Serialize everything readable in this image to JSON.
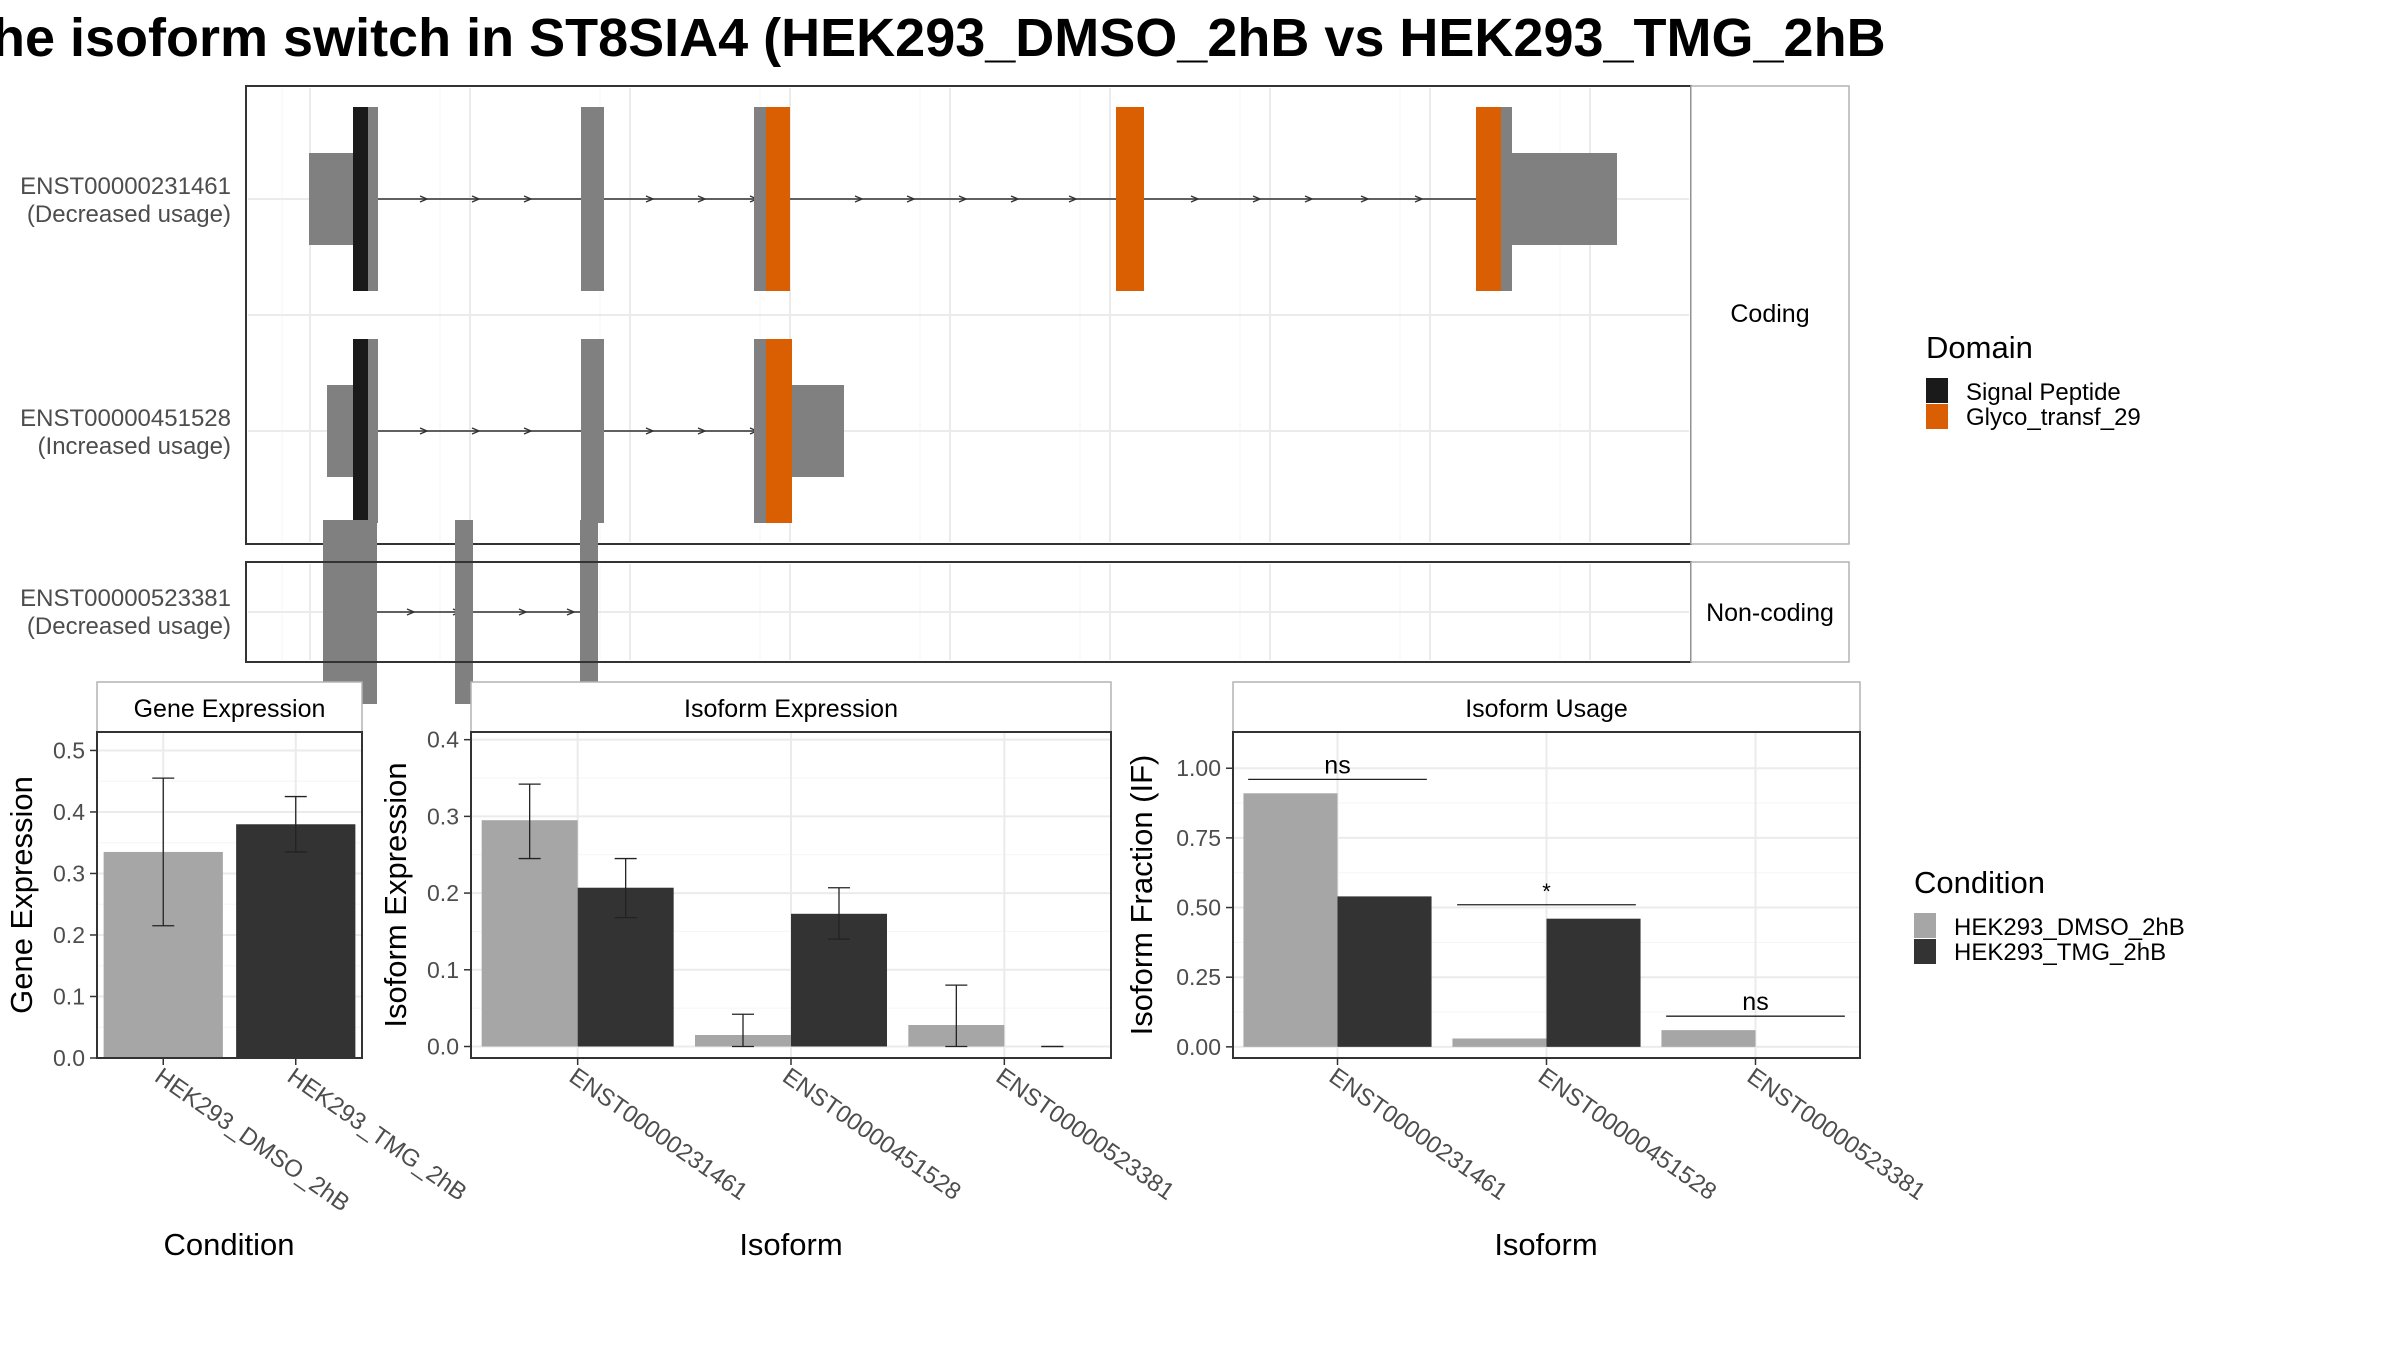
{
  "title": "he isoform switch in ST8SIA4 (HEK293_DMSO_2hB vs HEK293_TMG_2hB",
  "colors": {
    "exon": "#808080",
    "signal_peptide": "#1a1a1a",
    "glyco": "#d95f02",
    "dmso": "#a6a6a6",
    "tmg": "#333333",
    "panel_border": "#4d4d4d",
    "strip_fill": "#ffffff",
    "grid": "#ebebeb"
  },
  "structure": {
    "facet_labels": [
      "Coding",
      "Non-coding"
    ],
    "transcripts": [
      {
        "id": "ENST00000231461",
        "usage": "(Decreased usage)",
        "group": "Coding"
      },
      {
        "id": "ENST00000451528",
        "usage": "(Increased usage)",
        "group": "Coding"
      },
      {
        "id": "ENST00000523381",
        "usage": "(Decreased usage)",
        "group": "Non-coding"
      }
    ],
    "legend": {
      "title": "Domain",
      "items": [
        {
          "label": "Signal Peptide",
          "color": "#1a1a1a"
        },
        {
          "label": "Glyco_transf_29",
          "color": "#d95f02"
        }
      ]
    }
  },
  "chart_data": [
    {
      "type": "bar",
      "panel": "Gene Expression",
      "xlabel": "Condition",
      "ylabel": "Gene Expression",
      "categories": [
        "HEK293_DMSO_2hB",
        "HEK293_TMG_2hB"
      ],
      "values": [
        0.335,
        0.38
      ],
      "error_low": [
        0.215,
        0.335
      ],
      "error_high": [
        0.455,
        0.425
      ],
      "ylim": [
        0,
        0.53
      ],
      "yticks": [
        "0.0",
        "0.1",
        "0.2",
        "0.3",
        "0.4",
        "0.5"
      ],
      "grid": true
    },
    {
      "type": "bar",
      "panel": "Isoform Expression",
      "xlabel": "Isoform",
      "ylabel": "Isoform Expression",
      "categories": [
        "ENST00000231461",
        "ENST00000451528",
        "ENST00000523381"
      ],
      "series": [
        {
          "name": "HEK293_DMSO_2hB",
          "values": [
            0.295,
            0.015,
            0.028
          ],
          "error_low": [
            0.245,
            0.0,
            0.0
          ],
          "error_high": [
            0.342,
            0.042,
            0.08
          ]
        },
        {
          "name": "HEK293_TMG_2hB",
          "values": [
            0.207,
            0.173,
            0.0
          ],
          "error_low": [
            0.168,
            0.14,
            0.0
          ],
          "error_high": [
            0.245,
            0.207,
            0.0
          ]
        }
      ],
      "ylim": [
        -0.015,
        0.41
      ],
      "yticks": [
        "0.0",
        "0.1",
        "0.2",
        "0.3",
        "0.4"
      ],
      "grid": true
    },
    {
      "type": "bar",
      "panel": "Isoform Usage",
      "xlabel": "Isoform",
      "ylabel": "Isoform Fraction (IF)",
      "categories": [
        "ENST00000231461",
        "ENST00000451528",
        "ENST00000523381"
      ],
      "series": [
        {
          "name": "HEK293_DMSO_2hB",
          "values": [
            0.91,
            0.03,
            0.06
          ]
        },
        {
          "name": "HEK293_TMG_2hB",
          "values": [
            0.54,
            0.46,
            0.0
          ]
        }
      ],
      "significance": [
        "ns",
        "*",
        "ns"
      ],
      "ylim": [
        -0.04,
        1.13
      ],
      "yticks": [
        "0.00",
        "0.25",
        "0.50",
        "0.75",
        "1.00"
      ],
      "grid": true
    }
  ],
  "condition_legend": {
    "title": "Condition",
    "items": [
      {
        "label": "HEK293_DMSO_2hB",
        "color": "#a6a6a6"
      },
      {
        "label": "HEK293_TMG_2hB",
        "color": "#333333"
      }
    ]
  }
}
